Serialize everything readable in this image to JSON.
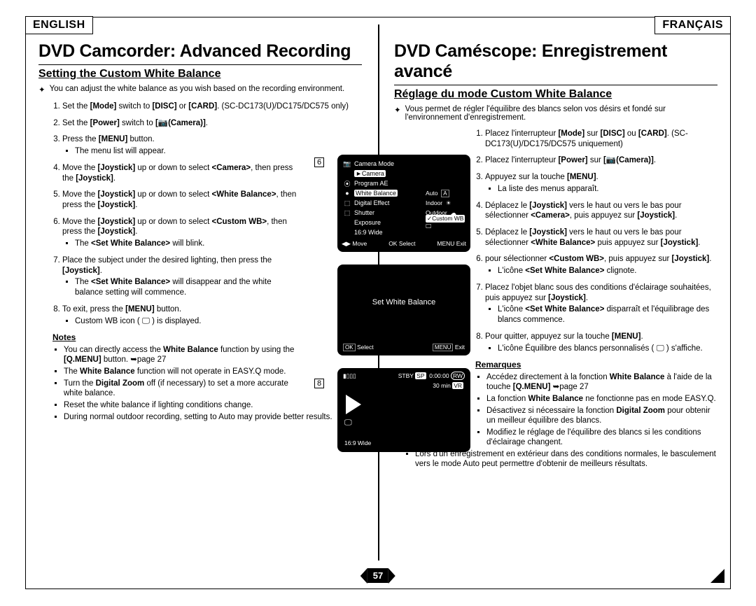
{
  "page_number": "57",
  "languages": {
    "en": "ENGLISH",
    "fr": "FRANÇAIS"
  },
  "english": {
    "chapter": "DVD Camcorder: Advanced Recording",
    "section": "Setting the Custom White Balance",
    "intro": "You can adjust the white balance as you wish based on the recording environment.",
    "steps": [
      {
        "text": "Set the <b>[Mode]</b> switch to <b>[DISC]</b> or <b>[CARD]</b>. (SC-DC173(U)/DC175/DC575 only)"
      },
      {
        "text": "Set the <b>[Power]</b> switch to <b>[📷(Camera)]</b>."
      },
      {
        "text": "Press the <b>[MENU]</b> button.",
        "sub": [
          "The menu list will appear."
        ]
      },
      {
        "text": "Move the <b>[Joystick]</b> up or down to select <b>&lt;Camera&gt;</b>, then press the <b>[Joystick]</b>."
      },
      {
        "text": "Move the <b>[Joystick]</b> up or down to select <b>&lt;White Balance&gt;</b>, then press the <b>[Joystick]</b>."
      },
      {
        "text": "Move the <b>[Joystick]</b> up or down to select <b>&lt;Custom WB&gt;</b>, then press the <b>[Joystick]</b>.",
        "sub": [
          "The <b>&lt;Set White Balance&gt;</b> will blink."
        ]
      },
      {
        "text": "Place the subject under the desired lighting, then press the <b>[Joystick]</b>.",
        "sub": [
          "The <b>&lt;Set White Balance&gt;</b> will disappear and the white balance setting will commence."
        ]
      },
      {
        "text": "To exit, press the <b>[MENU]</b> button.",
        "sub": [
          "Custom WB icon ( 🖵 ) is displayed."
        ]
      }
    ],
    "notes_header": "Notes",
    "notes": [
      "You can directly access the <b>White Balance</b> function by using the <b>[Q.MENU]</b> button. ➥page 27",
      "The <b>White Balance</b> function will not operate in EASY.Q mode.",
      "Turn the <b>Digital Zoom</b> off (if necessary) to set a more accurate white balance.",
      "Reset the white balance if lighting conditions change.",
      "During normal outdoor recording, setting to Auto may provide better results."
    ]
  },
  "french": {
    "chapter": "DVD Caméscope: Enregistrement avancé",
    "section": "Réglage du mode Custom White Balance",
    "intro": "Vous permet de régler l'équilibre des blancs selon vos désirs et fondé sur l'environnement d'enregistrement.",
    "steps": [
      {
        "text": "Placez l'interrupteur <b>[Mode]</b> sur <b>[DISC]</b> ou <b>[CARD]</b>. (SC-DC173(U)/DC175/DC575 uniquement)"
      },
      {
        "text": "Placez l'interrupteur <b>[Power]</b> sur <b>[📷(Camera)]</b>."
      },
      {
        "text": "Appuyez sur la touche <b>[MENU]</b>.",
        "sub": [
          "La liste des menus apparaît."
        ]
      },
      {
        "text": "Déplacez le <b>[Joystick]</b> vers le haut ou vers le bas pour sélectionner <b>&lt;Camera&gt;</b>, puis appuyez sur <b>[Joystick]</b>."
      },
      {
        "text": "Déplacez le <b>[Joystick]</b> vers le haut ou vers le bas pour sélectionner <b>&lt;White Balance&gt;</b> puis appuyez sur <b>[Joystick]</b>."
      },
      {
        "text": "pour sélectionner <b>&lt;Custom WB&gt;</b>, puis appuyez sur <b>[Joystick]</b>.",
        "sub": [
          "L'icône <b>&lt;Set White Balance&gt;</b> clignote."
        ]
      },
      {
        "text": "Placez l'objet blanc sous des conditions d'éclairage souhaitées, puis appuyez sur <b>[Joystick]</b>.",
        "sub": [
          "L'icône <b>&lt;Set White Balance&gt;</b> disparraît et l'équilibrage des blancs commence."
        ]
      },
      {
        "text": "Pour quitter, appuyez sur la touche <b>[MENU]</b>.",
        "sub": [
          "L'icône Équilibre des blancs personnalisés ( 🖵 ) s'affiche."
        ]
      }
    ],
    "notes_header": "Remarques",
    "notes": [
      "Accédez directement à la fonction <b>White Balance</b> à l'aide de la touche <b>[Q.MENU]</b> ➥page 27",
      "La fonction <b>White Balance</b> ne fonctionne pas en mode EASY.Q.",
      "Désactivez si nécessaire la fonction <b>Digital Zoom</b> pour obtenir un meilleur équilibre des blancs.",
      "Modifiez le réglage de l'équilibre des blancs si les conditions d'éclairage changent.",
      "Lors d'un enregistrement en extérieur dans des conditions normales, le basculement vers le mode Auto peut permettre d'obtenir de meilleurs résultats."
    ]
  },
  "figures": {
    "fig6_label": "6",
    "fig8_label": "8",
    "screen1": {
      "title": "Camera Mode",
      "active": "►Camera",
      "items": [
        "Program AE",
        "White Balance",
        "Digital Effect",
        "Shutter",
        "Exposure",
        "16:9 Wide"
      ],
      "opts": [
        "Auto",
        "Indoor",
        "Outdoor",
        "✓Custom WB"
      ],
      "opt_tags": [
        "A",
        "☀",
        "☁",
        "🖵"
      ],
      "footer": {
        "move": "◀▶ Move",
        "select": "OK Select",
        "exit": "MENU Exit"
      }
    },
    "screen2": {
      "title": "Set White Balance",
      "select": "OK Select",
      "exit": "MENU Exit"
    },
    "screen3": {
      "stby": "STBY",
      "sp": "SP",
      "time": "0:00:00",
      "rw": "RW",
      "remain": "30 min",
      "vr": "VR",
      "label": "16:9 Wide"
    }
  },
  "colors": {
    "text": "#000000",
    "bg": "#ffffff",
    "screen_bg": "#000000",
    "screen_fg": "#ffffff"
  }
}
